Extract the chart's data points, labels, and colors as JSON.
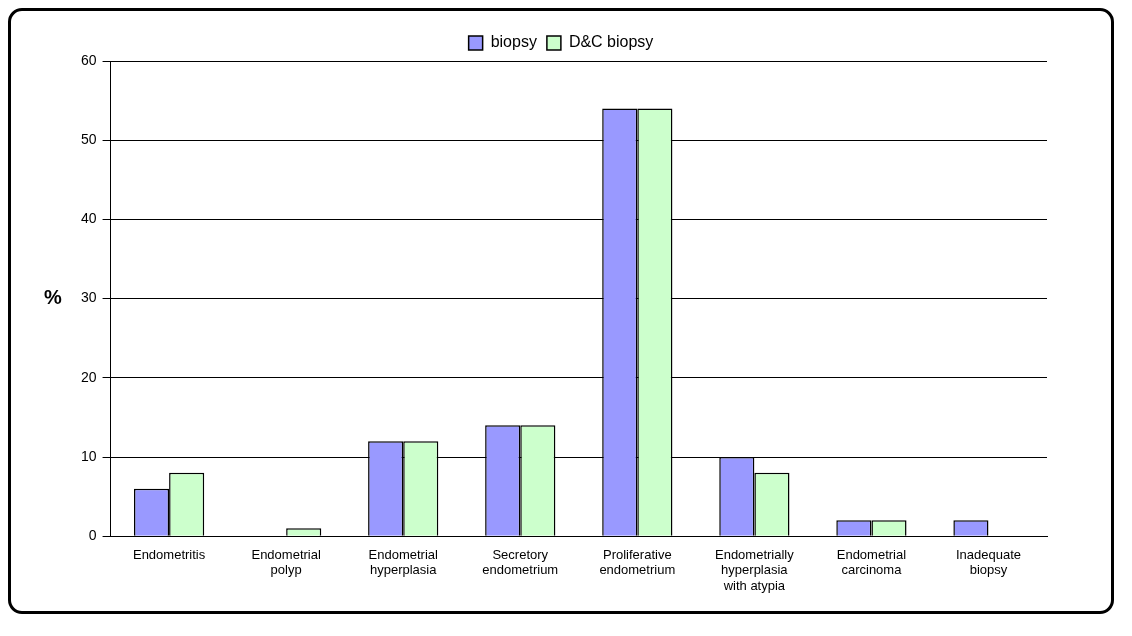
{
  "chart_data": {
    "type": "bar",
    "ylabel": "%",
    "categories": [
      "Endometritis",
      "Endometrial polyp",
      "Endometrial hyperplasia",
      "Secretory endometrium",
      "Proliferative endometrium",
      "Endometrially hyperplasia with atypia",
      "Endometrial carcinoma",
      "Inadequate biopsy"
    ],
    "series": [
      {
        "name": "biopsy",
        "color": "#9999ff",
        "values": [
          6,
          0,
          12,
          14,
          54,
          10,
          2,
          2
        ]
      },
      {
        "name": "D&C biopsy",
        "color": "#ccffcc",
        "values": [
          8,
          1,
          12,
          14,
          54,
          8,
          2,
          0
        ]
      }
    ],
    "ylim": [
      0,
      60
    ],
    "yticks": [
      0,
      10,
      20,
      30,
      40,
      50,
      60
    ],
    "grid": "y",
    "legend": "top"
  }
}
